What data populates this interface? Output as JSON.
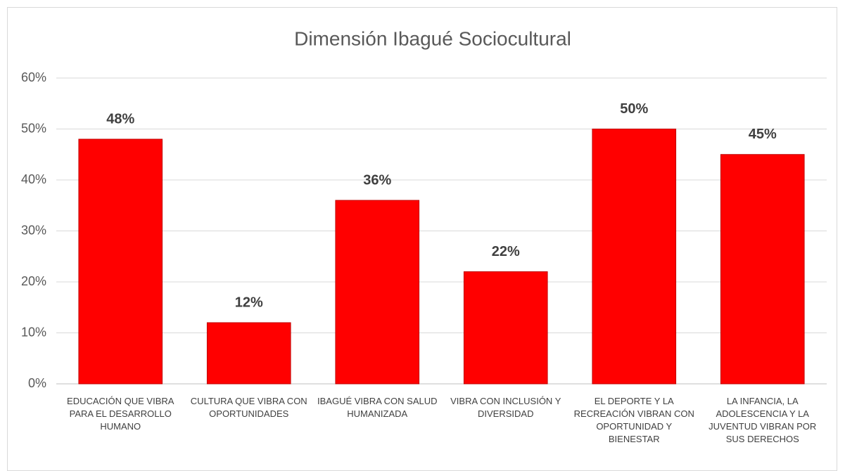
{
  "chart_data": {
    "type": "bar",
    "title": "Dimensión Ibagué Sociocultural",
    "categories": [
      "EDUCACIÓN QUE VIBRA PARA EL DESARROLLO HUMANO",
      "CULTURA QUE VIBRA CON OPORTUNIDADES",
      "IBAGUÉ VIBRA CON SALUD HUMANIZADA",
      "VIBRA CON INCLUSIÓN Y DIVERSIDAD",
      "EL DEPORTE Y LA RECREACIÓN VIBRAN CON OPORTUNIDAD Y BIENESTAR",
      "LA INFANCIA, LA ADOLESCENCIA Y LA JUVENTUD VIBRAN POR SUS DERECHOS"
    ],
    "values": [
      48,
      12,
      36,
      22,
      50,
      45
    ],
    "value_labels": [
      "48%",
      "12%",
      "36%",
      "22%",
      "50%",
      "45%"
    ],
    "color": "#ff0000",
    "ylim": [
      0,
      60
    ],
    "yticks": [
      {
        "value": 0,
        "label": "0%"
      },
      {
        "value": 10,
        "label": "10%"
      },
      {
        "value": 20,
        "label": "20%"
      },
      {
        "value": 30,
        "label": "30%"
      },
      {
        "value": 40,
        "label": "40%"
      },
      {
        "value": 50,
        "label": "50%"
      },
      {
        "value": 60,
        "label": "60%"
      }
    ],
    "grid": true
  }
}
